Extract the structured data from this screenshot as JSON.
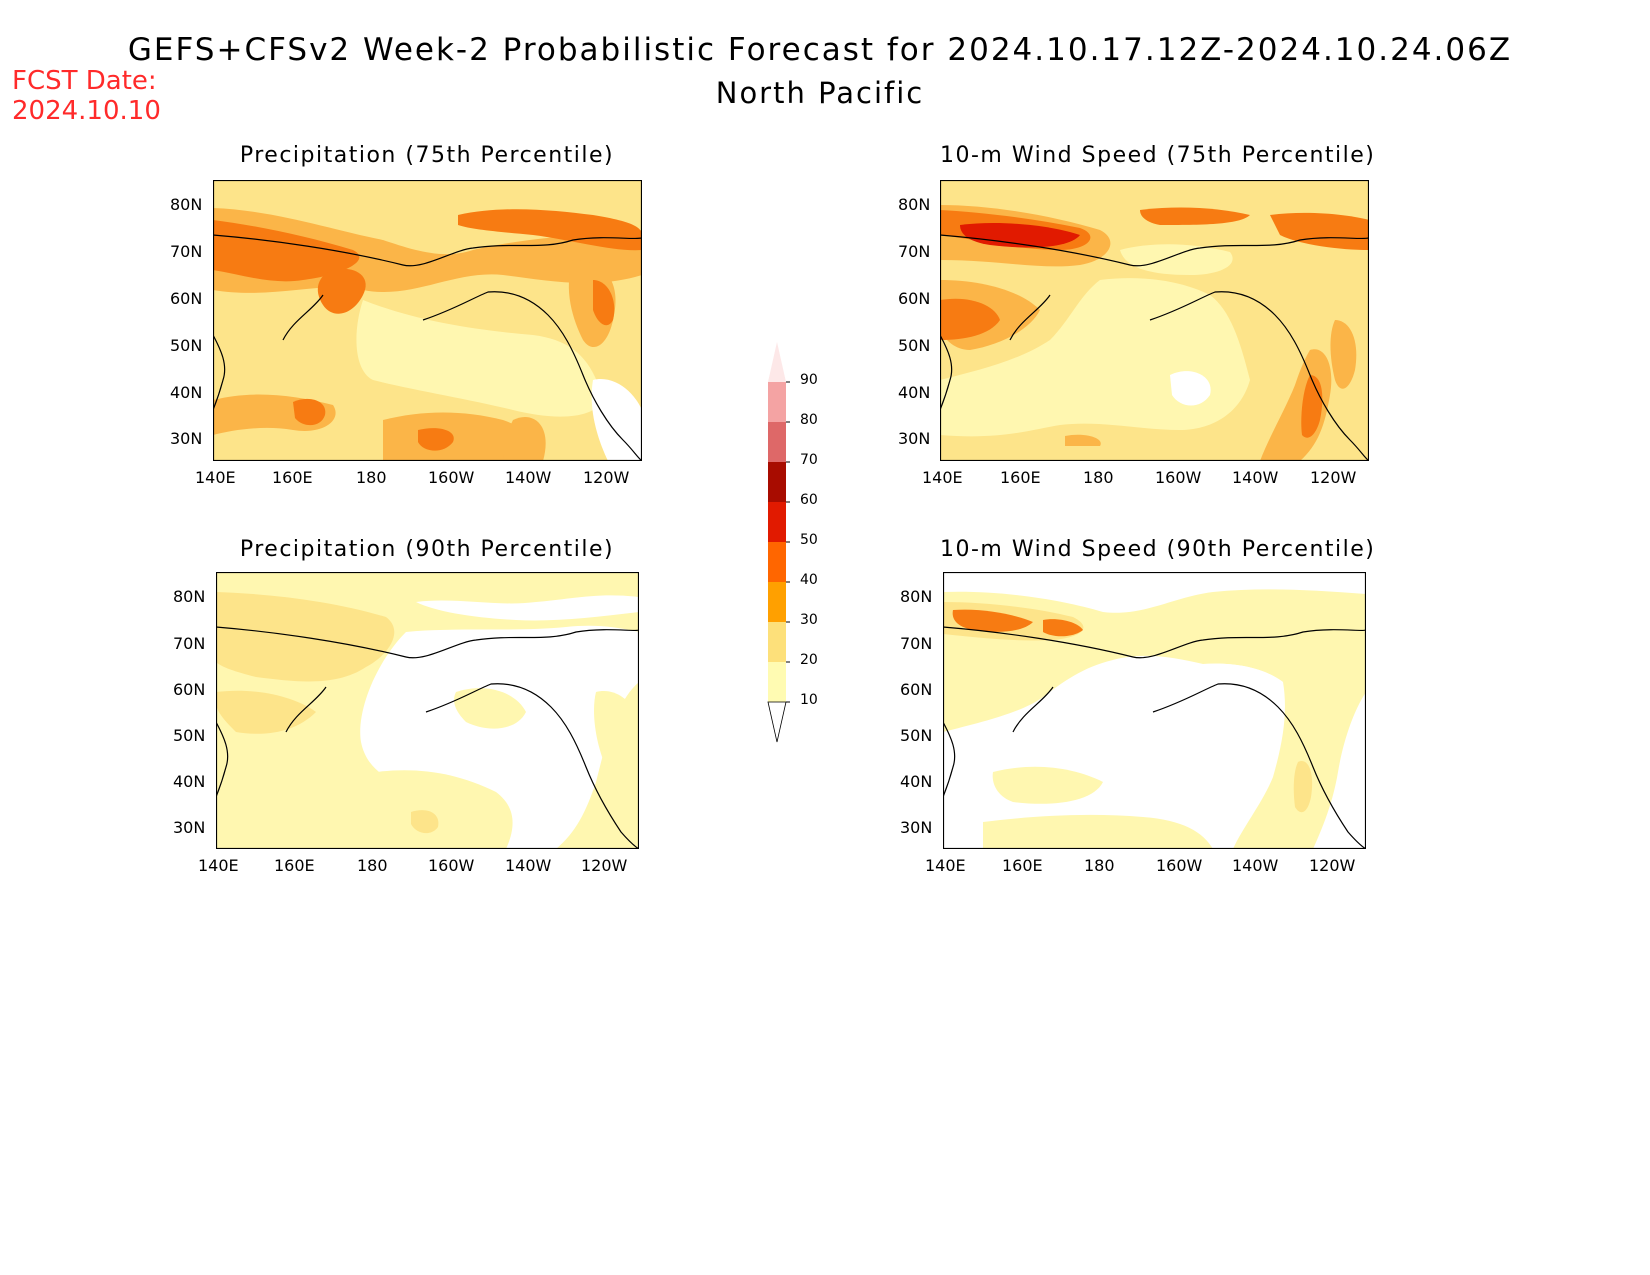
{
  "header": {
    "fcst_label": "FCST Date:",
    "fcst_date": "2024.10.10",
    "title": "GEFS+CFSv2 Week-2 Probabilistic Forecast for 2024.10.17.12Z-2024.10.24.06Z",
    "subtitle": "North Pacific"
  },
  "axes": {
    "x_ticks": [
      "140E",
      "160E",
      "180",
      "160W",
      "140W",
      "120W"
    ],
    "y_ticks": [
      "80N",
      "70N",
      "60N",
      "50N",
      "40N",
      "30N"
    ]
  },
  "panels": [
    {
      "title": "Precipitation (75th Percentile)"
    },
    {
      "title": "10-m Wind Speed (75th Percentile)"
    },
    {
      "title": "Precipitation (90th Percentile)"
    },
    {
      "title": "10-m Wind Speed (90th Percentile)"
    }
  ],
  "colorbar": {
    "labels": [
      "90",
      "80",
      "70",
      "60",
      "50",
      "40",
      "30",
      "20",
      "10"
    ],
    "colors": [
      "#fde8e8",
      "#f4a3a3",
      "#de6868",
      "#a80c00",
      "#e11a00",
      "#ff6600",
      "#ffa000",
      "#fde07a",
      "#fffbb2"
    ]
  },
  "colors": {
    "light": "#fff7b0",
    "yellow": "#fde48a",
    "orange_light": "#fbb548",
    "orange": "#f77b12",
    "red": "#e11a00",
    "fcst_red": "#ff2a2a"
  }
}
